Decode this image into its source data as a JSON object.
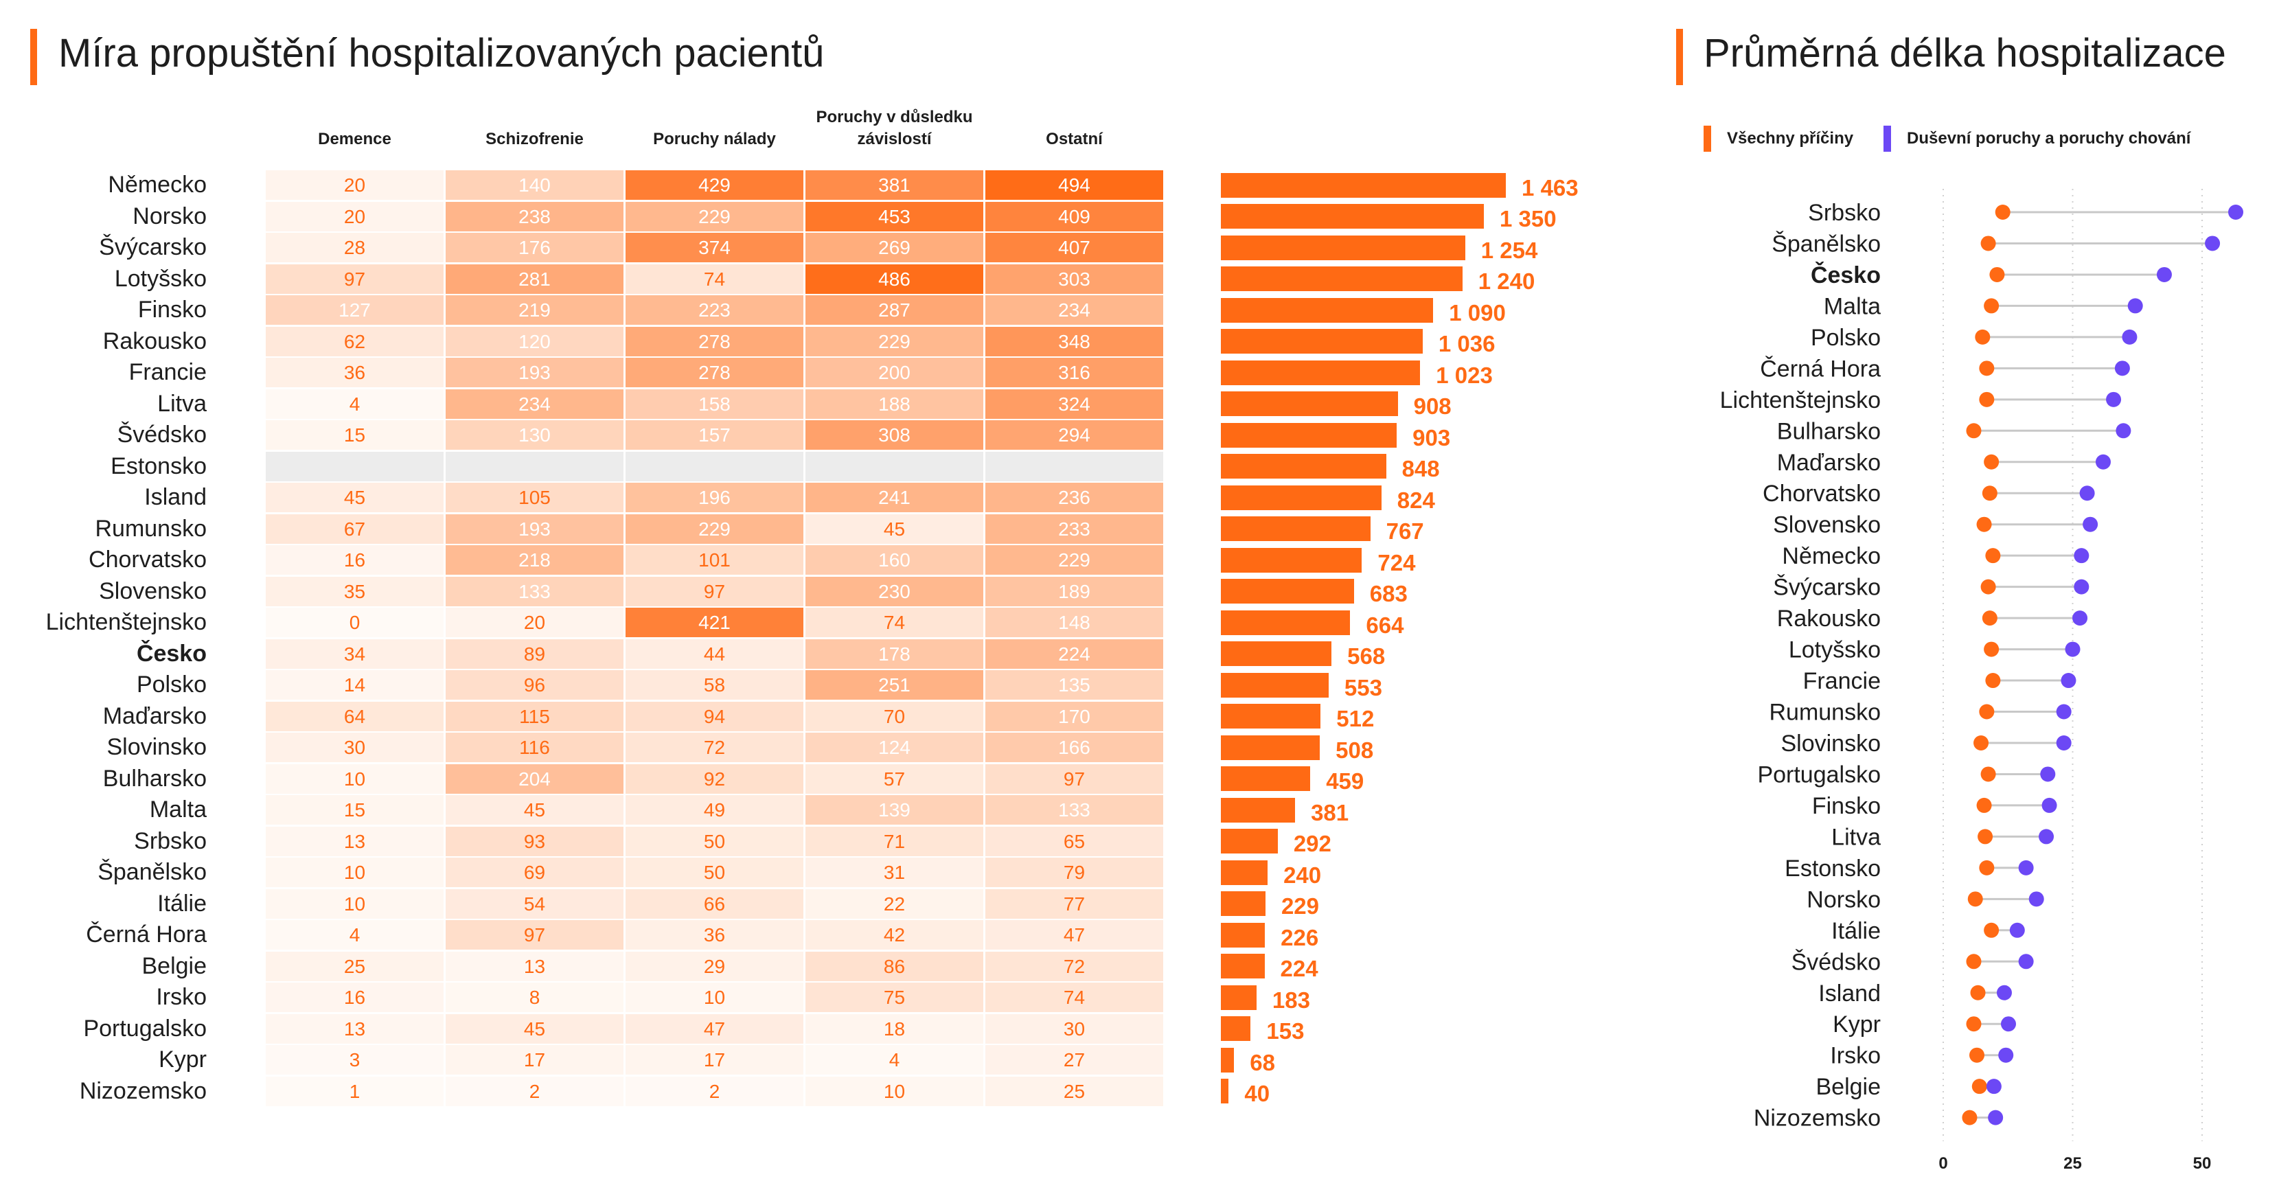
{
  "colors": {
    "accent": "#ff6a14",
    "heatmap_low": "#fffaf6",
    "secondary": "#6c48f5",
    "missing": "#ececec"
  },
  "chart_data": [
    {
      "type": "heatmap",
      "title": "Míra propuštění hospitalizovaných pacientů",
      "columns": [
        "Demence",
        "Schizofrenie",
        "Poruchy nálady",
        "Poruchy v důsledku závislostí",
        "Ostatní"
      ],
      "row_totals_type": "bar",
      "rows": [
        {
          "name": "Německo",
          "values": [
            20,
            140,
            429,
            381,
            494
          ],
          "total": 1463
        },
        {
          "name": "Norsko",
          "values": [
            20,
            238,
            229,
            453,
            409
          ],
          "total": 1350
        },
        {
          "name": "Švýcarsko",
          "values": [
            28,
            176,
            374,
            269,
            407
          ],
          "total": 1254
        },
        {
          "name": "Lotyšsko",
          "values": [
            97,
            281,
            74,
            486,
            303
          ],
          "total": 1240
        },
        {
          "name": "Finsko",
          "values": [
            127,
            219,
            223,
            287,
            234
          ],
          "total": 1090
        },
        {
          "name": "Rakousko",
          "values": [
            62,
            120,
            278,
            229,
            348
          ],
          "total": 1036
        },
        {
          "name": "Francie",
          "values": [
            36,
            193,
            278,
            200,
            316
          ],
          "total": 1023
        },
        {
          "name": "Litva",
          "values": [
            4,
            234,
            158,
            188,
            324
          ],
          "total": 908
        },
        {
          "name": "Švédsko",
          "values": [
            15,
            130,
            157,
            308,
            294
          ],
          "total": 903
        },
        {
          "name": "Estonsko",
          "values": null,
          "total": 848
        },
        {
          "name": "Island",
          "values": [
            45,
            105,
            196,
            241,
            236
          ],
          "total": 824
        },
        {
          "name": "Rumunsko",
          "values": [
            67,
            193,
            229,
            45,
            233
          ],
          "total": 767
        },
        {
          "name": "Chorvatsko",
          "values": [
            16,
            218,
            101,
            160,
            229
          ],
          "total": 724
        },
        {
          "name": "Slovensko",
          "values": [
            35,
            133,
            97,
            230,
            189
          ],
          "total": 683
        },
        {
          "name": "Lichtenštejnsko",
          "values": [
            0,
            20,
            421,
            74,
            148
          ],
          "total": 664
        },
        {
          "name": "Česko",
          "values": [
            34,
            89,
            44,
            178,
            224
          ],
          "total": 568,
          "highlight": true
        },
        {
          "name": "Polsko",
          "values": [
            14,
            96,
            58,
            251,
            135
          ],
          "total": 553
        },
        {
          "name": "Maďarsko",
          "values": [
            64,
            115,
            94,
            70,
            170
          ],
          "total": 512
        },
        {
          "name": "Slovinsko",
          "values": [
            30,
            116,
            72,
            124,
            166
          ],
          "total": 508
        },
        {
          "name": "Bulharsko",
          "values": [
            10,
            204,
            92,
            57,
            97
          ],
          "total": 459
        },
        {
          "name": "Malta",
          "values": [
            15,
            45,
            49,
            139,
            133
          ],
          "total": 381
        },
        {
          "name": "Srbsko",
          "values": [
            13,
            93,
            50,
            71,
            65
          ],
          "total": 292
        },
        {
          "name": "Španělsko",
          "values": [
            10,
            69,
            50,
            31,
            79
          ],
          "total": 240
        },
        {
          "name": "Itálie",
          "values": [
            10,
            54,
            66,
            22,
            77
          ],
          "total": 229
        },
        {
          "name": "Černá Hora",
          "values": [
            4,
            97,
            36,
            42,
            47
          ],
          "total": 226
        },
        {
          "name": "Belgie",
          "values": [
            25,
            13,
            29,
            86,
            72
          ],
          "total": 224
        },
        {
          "name": "Irsko",
          "values": [
            16,
            8,
            10,
            75,
            74
          ],
          "total": 183
        },
        {
          "name": "Portugalsko",
          "values": [
            13,
            45,
            47,
            18,
            30
          ],
          "total": 153
        },
        {
          "name": "Kypr",
          "values": [
            3,
            17,
            17,
            4,
            27
          ],
          "total": 68
        },
        {
          "name": "Nizozemsko",
          "values": [
            1,
            2,
            2,
            10,
            25
          ],
          "total": 40
        }
      ]
    },
    {
      "type": "scatter",
      "title": "Průměrná délka hospitalizace",
      "categories": [
        "Srbsko",
        "Španělsko",
        "Česko",
        "Malta",
        "Polsko",
        "Černá Hora",
        "Lichtenštejnsko",
        "Bulharsko",
        "Maďarsko",
        "Chorvatsko",
        "Slovensko",
        "Německo",
        "Švýcarsko",
        "Rakousko",
        "Lotyšsko",
        "Francie",
        "Rumunsko",
        "Slovinsko",
        "Portugalsko",
        "Finsko",
        "Litva",
        "Estonsko",
        "Norsko",
        "Itálie",
        "Švédsko",
        "Island",
        "Kypr",
        "Irsko",
        "Belgie",
        "Nizozemsko"
      ],
      "highlight_index": 2,
      "series": [
        {
          "name": "Všechny příčiny",
          "color": "#ff6a14",
          "values": [
            11.5,
            8.7,
            10.4,
            9.3,
            7.6,
            8.4,
            8.4,
            5.9,
            9.3,
            9.0,
            7.9,
            9.6,
            8.7,
            9.0,
            9.3,
            9.6,
            8.4,
            7.3,
            8.7,
            7.9,
            8.1,
            8.4,
            6.2,
            9.3,
            5.9,
            6.7,
            5.9,
            6.5,
            7.0,
            5.1
          ]
        },
        {
          "name": "Duševní poruchy a poruchy chování",
          "color": "#6c48f5",
          "values": [
            56.5,
            52.0,
            42.7,
            37.1,
            36.0,
            34.6,
            32.9,
            34.8,
            30.9,
            27.8,
            28.4,
            26.7,
            26.7,
            26.4,
            25.0,
            24.2,
            23.3,
            23.3,
            20.2,
            20.5,
            19.9,
            16.0,
            18.0,
            14.3,
            16.0,
            11.8,
            12.6,
            12.1,
            9.8,
            10.1
          ]
        }
      ],
      "xlim": [
        0,
        60
      ],
      "x_ticks": [
        0,
        25,
        50
      ],
      "grid": true,
      "legend": "top-left",
      "connectors": true
    }
  ]
}
